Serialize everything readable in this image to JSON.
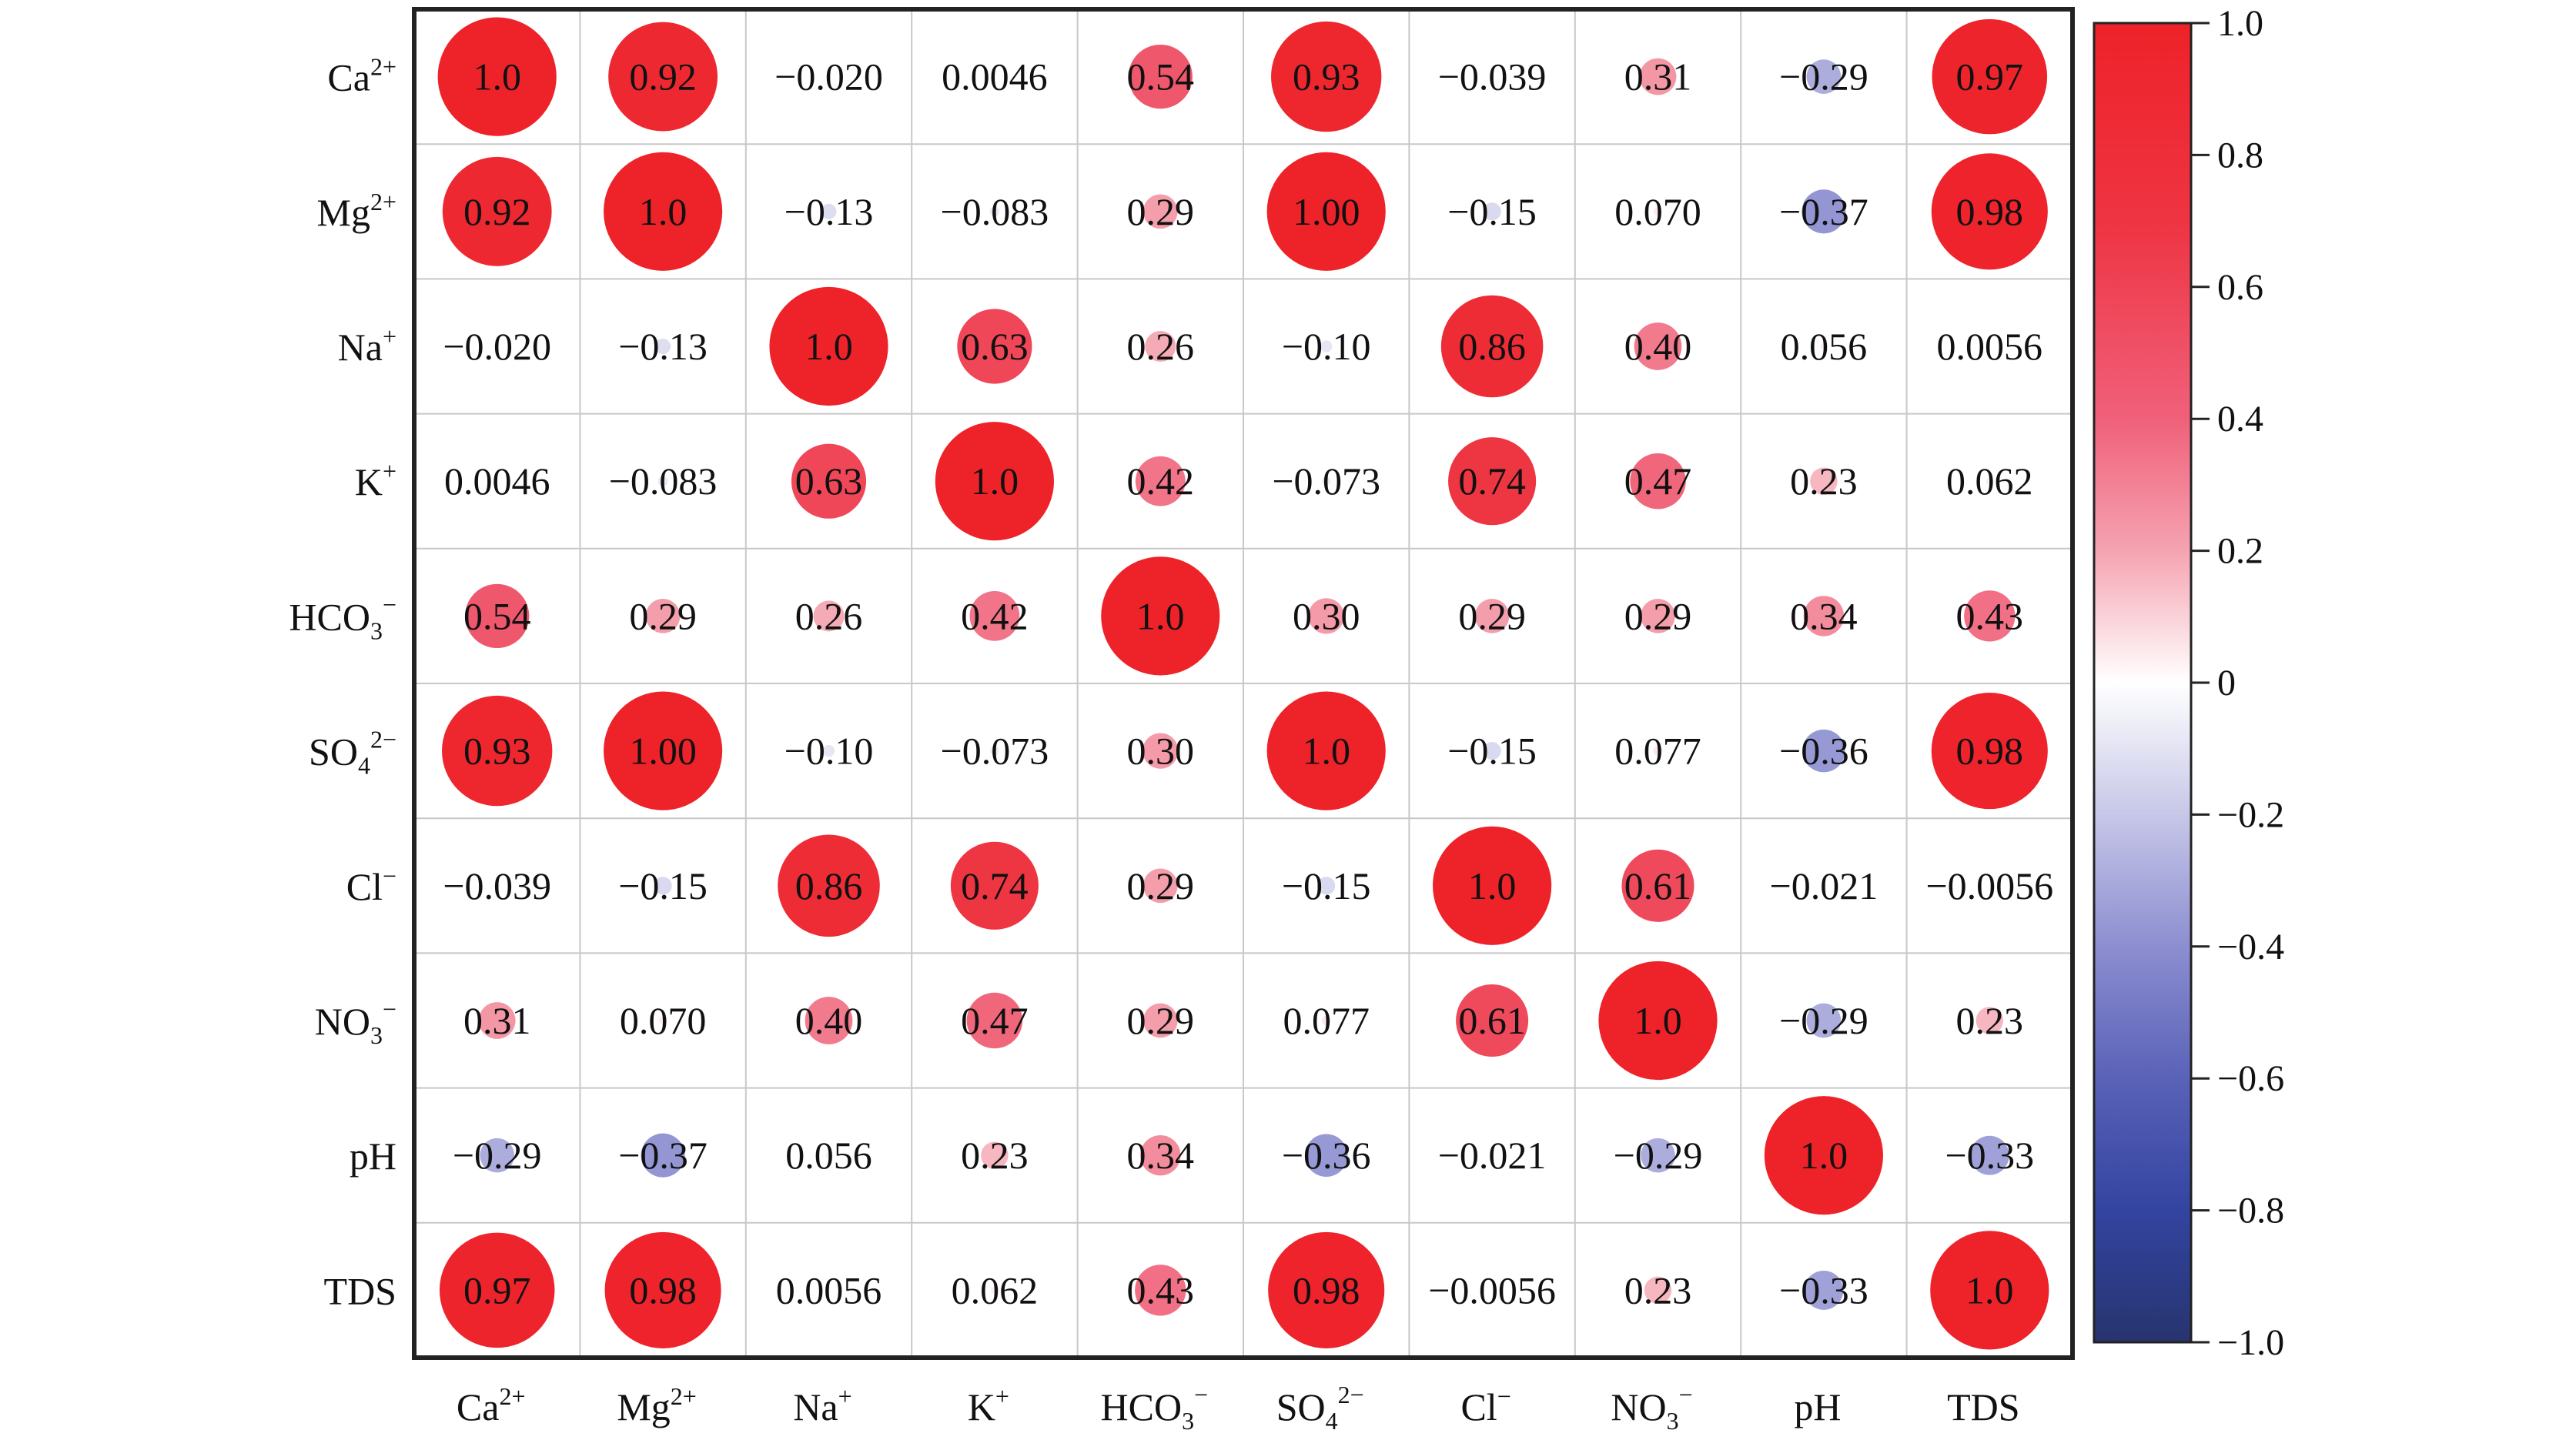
{
  "chart_data": {
    "type": "heatmap",
    "style": "correlation-circles",
    "labels": [
      {
        "base": "Ca",
        "sub": "",
        "sup": "2+"
      },
      {
        "base": "Mg",
        "sub": "",
        "sup": "2+"
      },
      {
        "base": "Na",
        "sub": "",
        "sup": "+"
      },
      {
        "base": "K",
        "sub": "",
        "sup": "+"
      },
      {
        "base": "HCO",
        "sub": "3",
        "sup": "−"
      },
      {
        "base": "SO",
        "sub": "4",
        "sup": "2−"
      },
      {
        "base": "Cl",
        "sub": "",
        "sup": "−"
      },
      {
        "base": "NO",
        "sub": "3",
        "sup": "−"
      },
      {
        "base": "pH",
        "sub": "",
        "sup": ""
      },
      {
        "base": "TDS",
        "sub": "",
        "sup": ""
      }
    ],
    "matrix_text": [
      [
        "1.0",
        "0.92",
        "−0.020",
        "0.0046",
        "0.54",
        "0.93",
        "−0.039",
        "0.31",
        "−0.29",
        "0.97"
      ],
      [
        "0.92",
        "1.0",
        "−0.13",
        "−0.083",
        "0.29",
        "1.00",
        "−0.15",
        "0.070",
        "−0.37",
        "0.98"
      ],
      [
        "−0.020",
        "−0.13",
        "1.0",
        "0.63",
        "0.26",
        "−0.10",
        "0.86",
        "0.40",
        "0.056",
        "0.0056"
      ],
      [
        "0.0046",
        "−0.083",
        "0.63",
        "1.0",
        "0.42",
        "−0.073",
        "0.74",
        "0.47",
        "0.23",
        "0.062"
      ],
      [
        "0.54",
        "0.29",
        "0.26",
        "0.42",
        "1.0",
        "0.30",
        "0.29",
        "0.29",
        "0.34",
        "0.43"
      ],
      [
        "0.93",
        "1.00",
        "−0.10",
        "−0.073",
        "0.30",
        "1.0",
        "−0.15",
        "0.077",
        "−0.36",
        "0.98"
      ],
      [
        "−0.039",
        "−0.15",
        "0.86",
        "0.74",
        "0.29",
        "−0.15",
        "1.0",
        "0.61",
        "−0.021",
        "−0.0056"
      ],
      [
        "0.31",
        "0.070",
        "0.40",
        "0.47",
        "0.29",
        "0.077",
        "0.61",
        "1.0",
        "−0.29",
        "0.23"
      ],
      [
        "−0.29",
        "−0.37",
        "0.056",
        "0.23",
        "0.34",
        "−0.36",
        "−0.021",
        "−0.29",
        "1.0",
        "−0.33"
      ],
      [
        "0.97",
        "0.98",
        "0.0056",
        "0.062",
        "0.43",
        "0.98",
        "−0.0056",
        "0.23",
        "−0.33",
        "1.0"
      ]
    ],
    "colorbar": {
      "range": [
        -1.0,
        1.0
      ],
      "ticks": [
        "1.0",
        "0.8",
        "0.6",
        "0.4",
        "0.2",
        "0",
        "−0.2",
        "−0.4",
        "−0.6",
        "−0.8",
        "−1.0"
      ],
      "tick_values": [
        1.0,
        0.8,
        0.6,
        0.4,
        0.2,
        0,
        -0.2,
        -0.4,
        -0.6,
        -0.8,
        -1.0
      ],
      "colors": {
        "positive": "#ee2229",
        "zero": "#ffffff",
        "negative": "#27346f"
      }
    },
    "grid": true,
    "legend": "right"
  }
}
